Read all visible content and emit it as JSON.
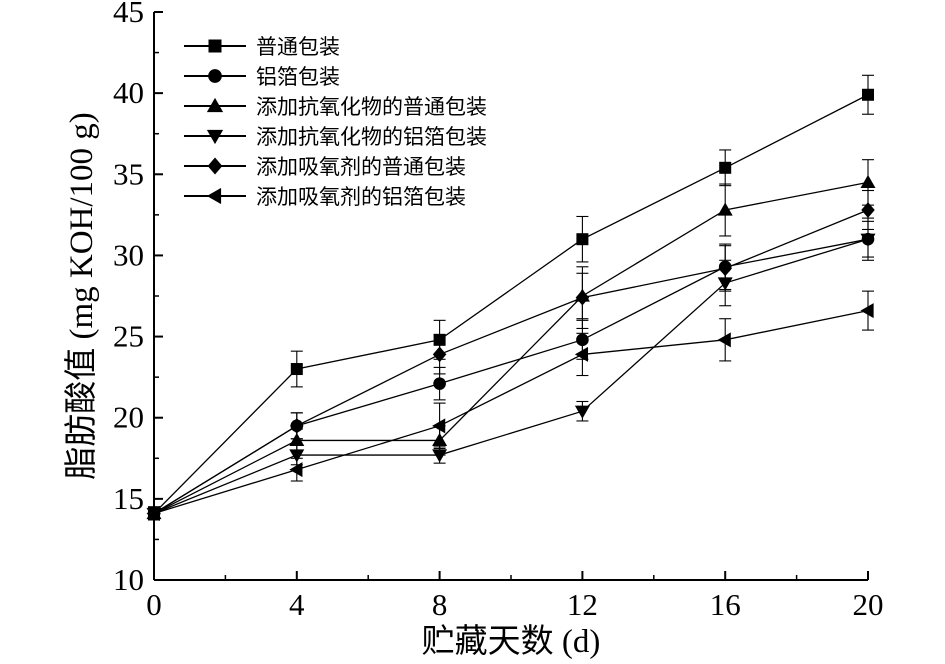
{
  "chart_data": {
    "type": "line",
    "xlabel": "贮藏天数 (d)",
    "ylabel": "脂肪酸值 (mg KOH/100 g)",
    "x": [
      0,
      4,
      8,
      12,
      16,
      20
    ],
    "xlim": [
      0,
      20
    ],
    "ylim": [
      10,
      45
    ],
    "xticks": [
      "0",
      "4",
      "8",
      "12",
      "16",
      "20"
    ],
    "yticks": [
      "10",
      "15",
      "20",
      "25",
      "30",
      "35",
      "40",
      "45"
    ],
    "legend_position": "top-left",
    "series": [
      {
        "name": "普通包装",
        "marker": "square",
        "values": [
          14.1,
          23.0,
          24.8,
          31.0,
          35.4,
          39.9
        ],
        "errors": [
          0.4,
          1.1,
          1.2,
          1.4,
          1.1,
          1.2
        ]
      },
      {
        "name": "铝箔包装",
        "marker": "circle",
        "values": [
          14.1,
          19.5,
          22.1,
          24.8,
          29.3,
          31.0
        ],
        "errors": [
          0.4,
          0.8,
          1.0,
          1.2,
          1.4,
          1.3
        ]
      },
      {
        "name": "添加抗氧化物的普通包装",
        "marker": "triangle-up",
        "values": [
          14.1,
          18.6,
          18.6,
          27.5,
          32.8,
          34.5
        ],
        "errors": [
          0.4,
          0.7,
          0.9,
          1.4,
          1.6,
          1.4
        ]
      },
      {
        "name": "添加抗氧化物的铝箔包装",
        "marker": "triangle-down",
        "values": [
          14.1,
          17.7,
          17.7,
          20.4,
          28.3,
          31.0
        ],
        "errors": [
          0.4,
          0.6,
          0.5,
          0.6,
          1.4,
          1.1
        ]
      },
      {
        "name": "添加吸氧剂的普通包装",
        "marker": "diamond",
        "values": [
          14.1,
          19.5,
          23.9,
          27.4,
          29.2,
          32.8
        ],
        "errors": [
          0.4,
          0.8,
          1.2,
          1.9,
          1.4,
          1.2
        ]
      },
      {
        "name": "添加吸氧剂的铝箔包装",
        "marker": "triangle-left",
        "values": [
          14.1,
          16.8,
          19.5,
          23.9,
          24.8,
          26.6
        ],
        "errors": [
          0.4,
          0.7,
          1.4,
          1.3,
          1.3,
          1.2
        ]
      }
    ]
  }
}
